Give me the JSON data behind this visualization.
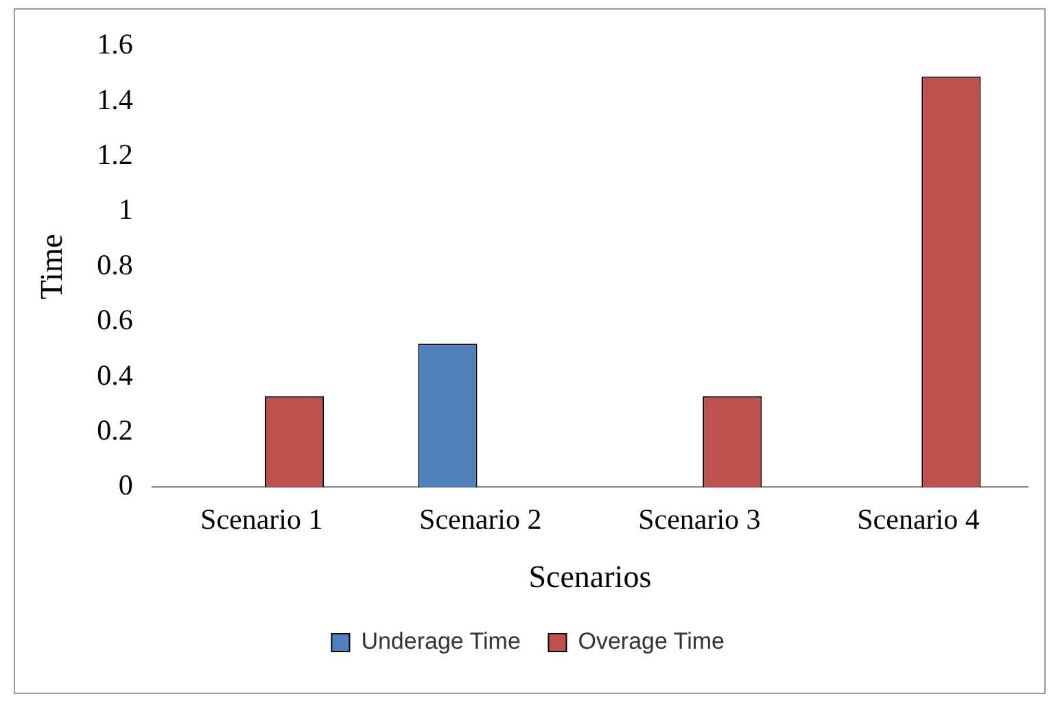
{
  "chart_data": {
    "type": "bar",
    "xlabel": "Scenarios",
    "ylabel": "Time",
    "categories": [
      "Scenario 1",
      "Scenario 2",
      "Scenario 3",
      "Scenario 4"
    ],
    "series": [
      {
        "name": "Underage Time",
        "color": "#4f81bd",
        "values": [
          null,
          0.52,
          null,
          null
        ]
      },
      {
        "name": "Overage Time",
        "color": "#c0504d",
        "values": [
          0.33,
          null,
          0.33,
          1.49
        ]
      }
    ],
    "ylim": [
      0,
      1.6
    ],
    "yticks": [
      0,
      0.2,
      0.4,
      0.6,
      0.8,
      1,
      1.2,
      1.4,
      1.6
    ],
    "grid": false,
    "legend": "bottom"
  }
}
